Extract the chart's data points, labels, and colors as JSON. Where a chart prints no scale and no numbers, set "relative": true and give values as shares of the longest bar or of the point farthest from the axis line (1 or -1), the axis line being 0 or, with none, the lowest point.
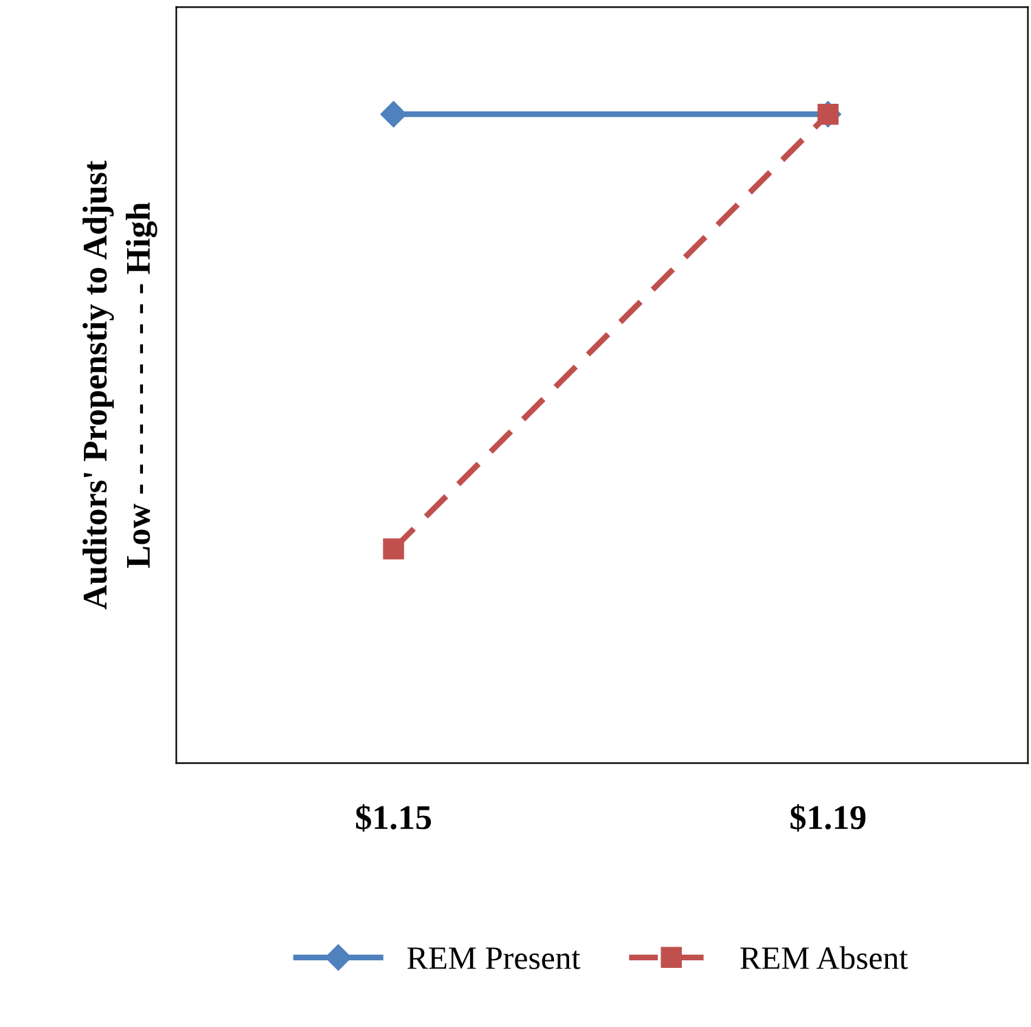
{
  "chart_data": {
    "type": "line",
    "relative": true,
    "ylabel": "Auditors' Propenstiy to Adjust\nLow - - - - - - - - - - - High",
    "categories": [
      "$1.15",
      "$1.19"
    ],
    "legend": "bottom",
    "grid": false,
    "series": [
      {
        "name": "REM Present",
        "color": "#4f81bd",
        "values": [
          1,
          1
        ],
        "marker": "diamond",
        "line_style": "solid"
      },
      {
        "name": "REM Absent",
        "color": "#c0504d",
        "values": [
          0.33,
          1
        ],
        "marker": "square",
        "line_style": "dashed"
      }
    ]
  }
}
